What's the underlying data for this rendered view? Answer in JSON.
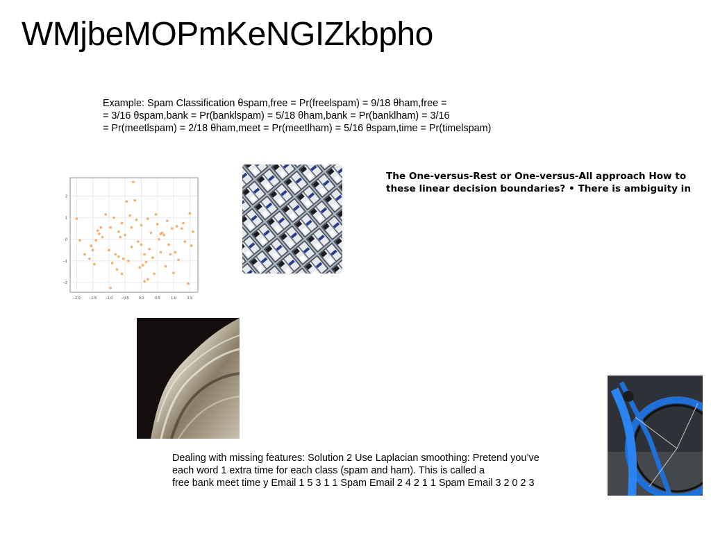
{
  "slide": {
    "title": "WMjbeMOPmKeNGIZkbpho",
    "text_spam": [
      "Example: Spam Classification θspam,free = Pr(freelspam) = 9/18 θham,free =",
      "= 3/16 θspam,bank = Pr(banklspam) = 5/18 θham,bank = Pr(banklham) = 3/16",
      "= Pr(meetlspam) = 2/18 θham,meet = Pr(meetlham) = 5/16 θspam,time = Pr(timelspam)"
    ],
    "text_ovr": [
      "The One-versus-Rest or One-versus-All approach How to",
      "these linear decision boundaries? • There is ambiguity in"
    ],
    "text_missing": [
      "Dealing with missing features: Solution 2 Use Laplacian smoothing: Pretend you’ve",
      "each word 1 extra time for each class (spam and ham). This is called a",
      "free bank meet time y Email 1 5 3 1 1 Spam Email 2 4 2 1 1 Spam Email 3 2 0 2 3"
    ]
  },
  "chart_data": {
    "type": "scatter",
    "x_ticks": [
      "−2.0",
      "−1.5",
      "−1.0",
      "−0.5",
      "0.0",
      "0.5",
      "1.0",
      "1.5"
    ],
    "y_ticks": [
      "2",
      "1",
      "0",
      "−1",
      "−2"
    ],
    "xlim": [
      -2.2,
      1.75
    ],
    "ylim": [
      -2.45,
      2.85
    ],
    "grid": true,
    "point_color": "#f2a65a",
    "points": [
      [
        -2.0,
        0.95
      ],
      [
        -1.9,
        -0.05
      ],
      [
        -1.75,
        -0.7
      ],
      [
        -1.55,
        -0.3
      ],
      [
        -1.5,
        -0.5
      ],
      [
        -1.45,
        -1.15
      ],
      [
        -1.4,
        -0.05
      ],
      [
        -1.3,
        0.25
      ],
      [
        -1.25,
        0.55
      ],
      [
        -1.2,
        0.1
      ],
      [
        -1.1,
        1.15
      ],
      [
        -1.0,
        -0.5
      ],
      [
        -0.95,
        0.55
      ],
      [
        -0.9,
        -1.1
      ],
      [
        -0.85,
        1.0
      ],
      [
        -0.8,
        -0.7
      ],
      [
        -0.75,
        -1.4
      ],
      [
        -0.7,
        0.35
      ],
      [
        -0.7,
        -0.8
      ],
      [
        -0.65,
        0.1
      ],
      [
        -0.6,
        0.75
      ],
      [
        -0.55,
        -0.9
      ],
      [
        -0.5,
        0.2
      ],
      [
        -0.45,
        1.75
      ],
      [
        -0.4,
        -1.0
      ],
      [
        -0.35,
        1.1
      ],
      [
        -0.3,
        0.55
      ],
      [
        -0.3,
        -0.35
      ],
      [
        -0.25,
        2.65
      ],
      [
        -0.2,
        1.8
      ],
      [
        -0.15,
        0.9
      ],
      [
        -0.1,
        -0.1
      ],
      [
        -0.05,
        -1.3
      ],
      [
        0.0,
        -0.25
      ],
      [
        0.0,
        0.65
      ],
      [
        0.05,
        -1.2
      ],
      [
        0.1,
        -0.7
      ],
      [
        0.15,
        -1.05
      ],
      [
        0.2,
        0.95
      ],
      [
        0.25,
        -0.45
      ],
      [
        0.3,
        0.3
      ],
      [
        0.35,
        -0.85
      ],
      [
        0.4,
        -1.6
      ],
      [
        0.45,
        1.15
      ],
      [
        0.5,
        0.7
      ],
      [
        0.55,
        0.0
      ],
      [
        0.6,
        -0.6
      ],
      [
        0.65,
        0.3
      ],
      [
        0.7,
        0.2
      ],
      [
        0.75,
        -1.25
      ],
      [
        0.8,
        0.85
      ],
      [
        0.85,
        -0.25
      ],
      [
        0.9,
        -0.7
      ],
      [
        0.95,
        0.5
      ],
      [
        1.0,
        -1.55
      ],
      [
        1.1,
        0.6
      ],
      [
        1.15,
        -0.95
      ],
      [
        1.3,
        0.75
      ],
      [
        1.35,
        -0.1
      ],
      [
        1.45,
        -2.05
      ],
      [
        1.5,
        1.2
      ],
      [
        1.55,
        -0.3
      ],
      [
        1.6,
        0.35
      ],
      [
        -1.6,
        -0.9
      ],
      [
        -0.95,
        -2.25
      ],
      [
        0.1,
        -1.95
      ],
      [
        0.2,
        -1.85
      ],
      [
        -0.6,
        -1.6
      ],
      [
        1.05,
        -0.6
      ],
      [
        -1.35,
        0.4
      ],
      [
        0.6,
        0.25
      ],
      [
        1.25,
        0.5
      ]
    ]
  }
}
